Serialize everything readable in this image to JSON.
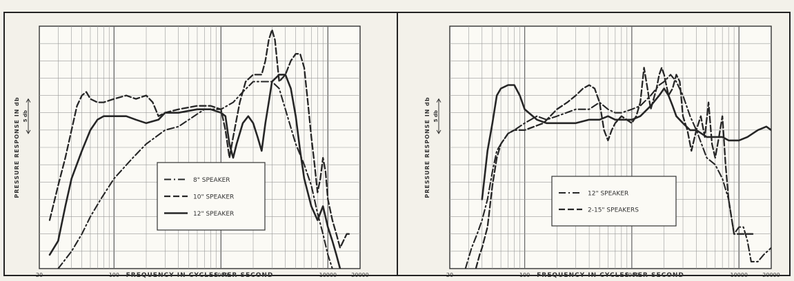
{
  "chart_data": [
    {
      "type": "line",
      "ylabel": "PRESSURE RESPONSE IN db",
      "xlabel": "FREQUENCY IN CYCLES PER SECOND",
      "x_scale": "log",
      "xlim": [
        20,
        20000
      ],
      "ylim": [
        0,
        35
      ],
      "x_tick_labels": [
        "20",
        "100",
        "1000",
        "10000",
        "20000"
      ],
      "scale_mark_label": "5 db",
      "legend_position": "center",
      "series": [
        {
          "name": "8\" SPEAKER",
          "style": "dash-dot",
          "points": [
            [
              30,
              0
            ],
            [
              40,
              2.5
            ],
            [
              50,
              5
            ],
            [
              60,
              7.5
            ],
            [
              75,
              10
            ],
            [
              100,
              13
            ],
            [
              150,
              16
            ],
            [
              200,
              18
            ],
            [
              300,
              20
            ],
            [
              400,
              20.5
            ],
            [
              500,
              21.5
            ],
            [
              700,
              23
            ],
            [
              1000,
              23
            ],
            [
              1300,
              24
            ],
            [
              1600,
              25.5
            ],
            [
              2000,
              27
            ],
            [
              2500,
              27
            ],
            [
              3000,
              27
            ],
            [
              3500,
              26
            ],
            [
              4000,
              23
            ],
            [
              5000,
              18
            ],
            [
              6000,
              15
            ],
            [
              7000,
              12
            ],
            [
              8000,
              8
            ],
            [
              9000,
              5
            ],
            [
              10000,
              2
            ],
            [
              11000,
              0
            ]
          ]
        },
        {
          "name": "10\" SPEAKER",
          "style": "dashed",
          "points": [
            [
              25,
              7
            ],
            [
              30,
              12
            ],
            [
              35,
              16
            ],
            [
              40,
              20
            ],
            [
              45,
              23.5
            ],
            [
              50,
              25
            ],
            [
              55,
              25.5
            ],
            [
              60,
              24.5
            ],
            [
              70,
              24
            ],
            [
              80,
              24
            ],
            [
              100,
              24.5
            ],
            [
              130,
              25
            ],
            [
              160,
              24.5
            ],
            [
              200,
              25
            ],
            [
              230,
              24
            ],
            [
              260,
              22
            ],
            [
              300,
              22.5
            ],
            [
              400,
              23
            ],
            [
              600,
              23.5
            ],
            [
              800,
              23.5
            ],
            [
              1000,
              23
            ],
            [
              1100,
              20
            ],
            [
              1200,
              16
            ],
            [
              1300,
              19
            ],
            [
              1500,
              24
            ],
            [
              1700,
              27
            ],
            [
              2000,
              28
            ],
            [
              2200,
              28
            ],
            [
              2400,
              28
            ],
            [
              2600,
              30
            ],
            [
              2800,
              33
            ],
            [
              3000,
              34.5
            ],
            [
              3200,
              33
            ],
            [
              3500,
              27
            ],
            [
              4000,
              28
            ],
            [
              4500,
              30
            ],
            [
              5000,
              31
            ],
            [
              5500,
              31
            ],
            [
              6000,
              29
            ],
            [
              6500,
              24
            ],
            [
              7000,
              19
            ],
            [
              7500,
              15
            ],
            [
              8000,
              11
            ],
            [
              8500,
              13
            ],
            [
              9000,
              16
            ],
            [
              9500,
              14
            ],
            [
              10000,
              10
            ],
            [
              11000,
              7
            ],
            [
              12000,
              5
            ],
            [
              13000,
              3
            ],
            [
              15000,
              5
            ],
            [
              16000,
              5
            ]
          ]
        },
        {
          "name": "12\" SPEAKER",
          "style": "solid",
          "points": [
            [
              25,
              2
            ],
            [
              30,
              4
            ],
            [
              35,
              9
            ],
            [
              40,
              13
            ],
            [
              50,
              17
            ],
            [
              60,
              20
            ],
            [
              70,
              21.5
            ],
            [
              80,
              22
            ],
            [
              100,
              22
            ],
            [
              130,
              22
            ],
            [
              160,
              21.5
            ],
            [
              200,
              21
            ],
            [
              260,
              21.5
            ],
            [
              300,
              22.5
            ],
            [
              400,
              22.5
            ],
            [
              600,
              23
            ],
            [
              800,
              23
            ],
            [
              1000,
              22.5
            ],
            [
              1100,
              22
            ],
            [
              1200,
              18
            ],
            [
              1300,
              16
            ],
            [
              1400,
              18
            ],
            [
              1600,
              21
            ],
            [
              1800,
              22
            ],
            [
              2000,
              21
            ],
            [
              2200,
              19
            ],
            [
              2400,
              17
            ],
            [
              2600,
              21
            ],
            [
              2800,
              24
            ],
            [
              3000,
              27
            ],
            [
              3500,
              28
            ],
            [
              4000,
              28
            ],
            [
              4500,
              26
            ],
            [
              5000,
              22
            ],
            [
              5500,
              17
            ],
            [
              6000,
              13
            ],
            [
              7000,
              9
            ],
            [
              8000,
              7
            ],
            [
              9000,
              9
            ],
            [
              10000,
              6
            ],
            [
              11000,
              4
            ],
            [
              12000,
              2
            ],
            [
              13000,
              0
            ]
          ]
        }
      ]
    },
    {
      "type": "line",
      "ylabel": "PRESSURE RESPONSE IN db",
      "xlabel": "FREQUENCY IN CYCLES PER SECOND",
      "x_scale": "log",
      "xlim": [
        20,
        20000
      ],
      "ylim": [
        0,
        35
      ],
      "x_tick_labels": [
        "20",
        "100",
        "1000",
        "10000",
        "20000"
      ],
      "scale_mark_label": "5 db",
      "legend_position": "center",
      "series": [
        {
          "name": "12\" SPEAKER",
          "style": "dash-dot",
          "points": [
            [
              28,
              0
            ],
            [
              32,
              3
            ],
            [
              36,
              5
            ],
            [
              40,
              7
            ],
            [
              45,
              10
            ],
            [
              50,
              14
            ],
            [
              55,
              17
            ],
            [
              60,
              18
            ],
            [
              70,
              19.5
            ],
            [
              80,
              20
            ],
            [
              100,
              21
            ],
            [
              130,
              22
            ],
            [
              160,
              21.5
            ],
            [
              200,
              22
            ],
            [
              300,
              23
            ],
            [
              400,
              23
            ],
            [
              500,
              24
            ],
            [
              600,
              23
            ],
            [
              700,
              22.5
            ],
            [
              800,
              22.5
            ],
            [
              1000,
              23
            ],
            [
              1200,
              23.5
            ],
            [
              1500,
              25
            ],
            [
              1800,
              26.5
            ],
            [
              2000,
              27
            ],
            [
              2300,
              28
            ],
            [
              2600,
              27
            ],
            [
              3000,
              25
            ],
            [
              3500,
              22
            ],
            [
              4000,
              20
            ],
            [
              5000,
              16
            ],
            [
              6000,
              15
            ],
            [
              7000,
              13
            ],
            [
              8000,
              10
            ],
            [
              9000,
              5
            ],
            [
              10000,
              6
            ],
            [
              11000,
              6
            ],
            [
              12000,
              4
            ],
            [
              13000,
              1
            ],
            [
              15000,
              1
            ],
            [
              17000,
              2
            ],
            [
              20000,
              3
            ]
          ]
        },
        {
          "name": "2-15\" SPEAKERS",
          "style": "dashed",
          "points": [
            [
              35,
              0
            ],
            [
              38,
              2
            ],
            [
              40,
              3
            ],
            [
              45,
              6
            ],
            [
              50,
              12
            ],
            [
              55,
              16
            ],
            [
              60,
              18
            ],
            [
              70,
              19.5
            ],
            [
              80,
              20
            ],
            [
              100,
              20
            ],
            [
              150,
              21
            ],
            [
              200,
              23
            ],
            [
              250,
              24
            ],
            [
              300,
              25
            ],
            [
              350,
              26
            ],
            [
              400,
              26.5
            ],
            [
              450,
              26
            ],
            [
              500,
              24
            ],
            [
              550,
              20
            ],
            [
              600,
              18.5
            ],
            [
              650,
              20
            ],
            [
              700,
              21
            ],
            [
              800,
              22
            ],
            [
              1000,
              21
            ],
            [
              1100,
              22
            ],
            [
              1200,
              24
            ],
            [
              1300,
              29
            ],
            [
              1400,
              26
            ],
            [
              1500,
              23
            ],
            [
              1700,
              26
            ],
            [
              1800,
              28
            ],
            [
              1900,
              29
            ],
            [
              2000,
              28
            ],
            [
              2200,
              25
            ],
            [
              2400,
              26
            ],
            [
              2600,
              28
            ],
            [
              2800,
              27
            ],
            [
              3000,
              22
            ],
            [
              3300,
              20
            ],
            [
              3600,
              17
            ],
            [
              4000,
              20
            ],
            [
              4400,
              22
            ],
            [
              4800,
              19
            ],
            [
              5200,
              24
            ],
            [
              5600,
              18
            ],
            [
              6000,
              16
            ],
            [
              6500,
              19
            ],
            [
              7000,
              22
            ],
            [
              7500,
              15
            ],
            [
              8000,
              10
            ],
            [
              9000,
              5
            ],
            [
              10000,
              5
            ],
            [
              12000,
              5
            ],
            [
              14000,
              5
            ]
          ]
        },
        {
          "name": "",
          "style": "solid",
          "points": [
            [
              40,
              10
            ],
            [
              45,
              17
            ],
            [
              50,
              21
            ],
            [
              55,
              25
            ],
            [
              60,
              26
            ],
            [
              70,
              26.5
            ],
            [
              80,
              26.5
            ],
            [
              90,
              25
            ],
            [
              100,
              23
            ],
            [
              130,
              21.5
            ],
            [
              160,
              21
            ],
            [
              200,
              21
            ],
            [
              300,
              21
            ],
            [
              400,
              21.5
            ],
            [
              500,
              21.5
            ],
            [
              600,
              22
            ],
            [
              700,
              21.5
            ],
            [
              800,
              21.5
            ],
            [
              1000,
              21.5
            ],
            [
              1200,
              22
            ],
            [
              1500,
              23.5
            ],
            [
              1800,
              25
            ],
            [
              2000,
              26
            ],
            [
              2200,
              25
            ],
            [
              2400,
              23.5
            ],
            [
              2600,
              22
            ],
            [
              3000,
              21
            ],
            [
              3500,
              20
            ],
            [
              4000,
              20
            ],
            [
              5000,
              19
            ],
            [
              6000,
              19
            ],
            [
              7000,
              19
            ],
            [
              8000,
              18.5
            ],
            [
              9000,
              18.5
            ],
            [
              10000,
              18.5
            ],
            [
              12000,
              19
            ],
            [
              15000,
              20
            ],
            [
              18000,
              20.5
            ],
            [
              20000,
              20
            ]
          ]
        }
      ]
    }
  ]
}
